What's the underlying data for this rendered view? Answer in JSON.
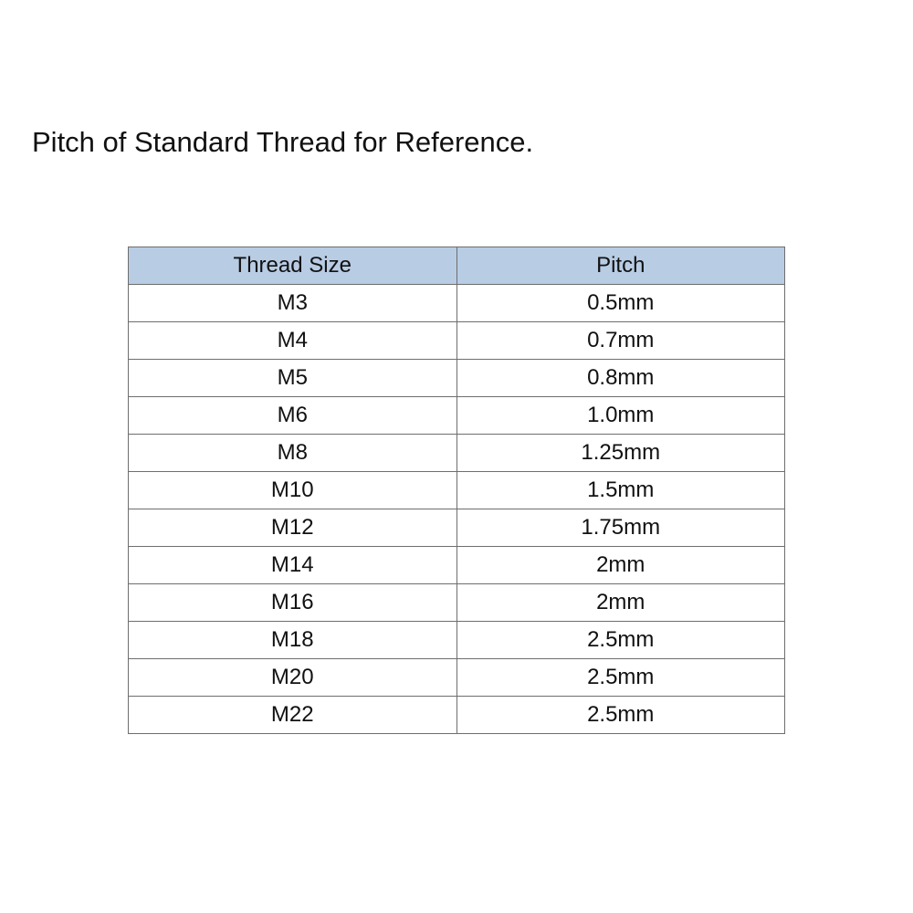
{
  "page": {
    "title": "Pitch of Standard Thread for Reference."
  },
  "table": {
    "columns": [
      "Thread Size",
      "Pitch"
    ],
    "rows": [
      [
        "M3",
        "0.5mm"
      ],
      [
        "M4",
        "0.7mm"
      ],
      [
        "M5",
        "0.8mm"
      ],
      [
        "M6",
        "1.0mm"
      ],
      [
        "M8",
        "1.25mm"
      ],
      [
        "M10",
        "1.5mm"
      ],
      [
        "M12",
        "1.75mm"
      ],
      [
        "M14",
        "2mm"
      ],
      [
        "M16",
        "2mm"
      ],
      [
        "M18",
        "2.5mm"
      ],
      [
        "M20",
        "2.5mm"
      ],
      [
        "M22",
        "2.5mm"
      ]
    ],
    "colors": {
      "header_bg": "#b8cce4",
      "border": "#6e6e6e",
      "outer_border": "#595959",
      "text": "#111111"
    }
  }
}
